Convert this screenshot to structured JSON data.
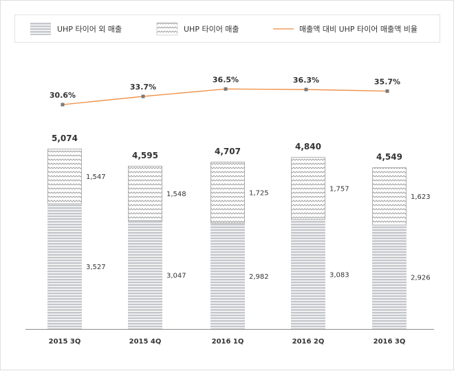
{
  "chart_data": {
    "type": "bar",
    "stacked": true,
    "categories": [
      "2015 3Q",
      "2015 4Q",
      "2016 1Q",
      "2016 2Q",
      "2016 3Q"
    ],
    "series": [
      {
        "name": "UHP 타이어 외 매출",
        "kind": "bar",
        "pattern": "horizontal-stripes",
        "color": "#c5c7cc",
        "values": [
          3527,
          3047,
          2982,
          3083,
          2926
        ],
        "labels": [
          "3,527",
          "3,047",
          "2,982",
          "3,083",
          "2,926"
        ]
      },
      {
        "name": "UHP 타이어 매출",
        "kind": "bar",
        "pattern": "zigzag",
        "color": "#a0a0a0",
        "values": [
          1547,
          1548,
          1725,
          1757,
          1623
        ],
        "labels": [
          "1,547",
          "1,548",
          "1,725",
          "1,757",
          "1,623"
        ]
      },
      {
        "name": "매출액 대비 UHP 타이어 매출액 비율",
        "kind": "line",
        "color": "#ef8a3c",
        "values": [
          30.6,
          33.7,
          36.5,
          36.3,
          35.7
        ],
        "labels": [
          "30.6%",
          "33.7%",
          "36.5%",
          "36.3%",
          "35.7%"
        ]
      }
    ],
    "totals": [
      5074,
      4595,
      4707,
      4840,
      4549
    ],
    "total_labels": [
      "5,074",
      "4,595",
      "4,707",
      "4,840",
      "4,549"
    ],
    "highlight_index": 4,
    "highlight_color": "#ef8a3c",
    "legend_position": "top",
    "grid": false
  }
}
